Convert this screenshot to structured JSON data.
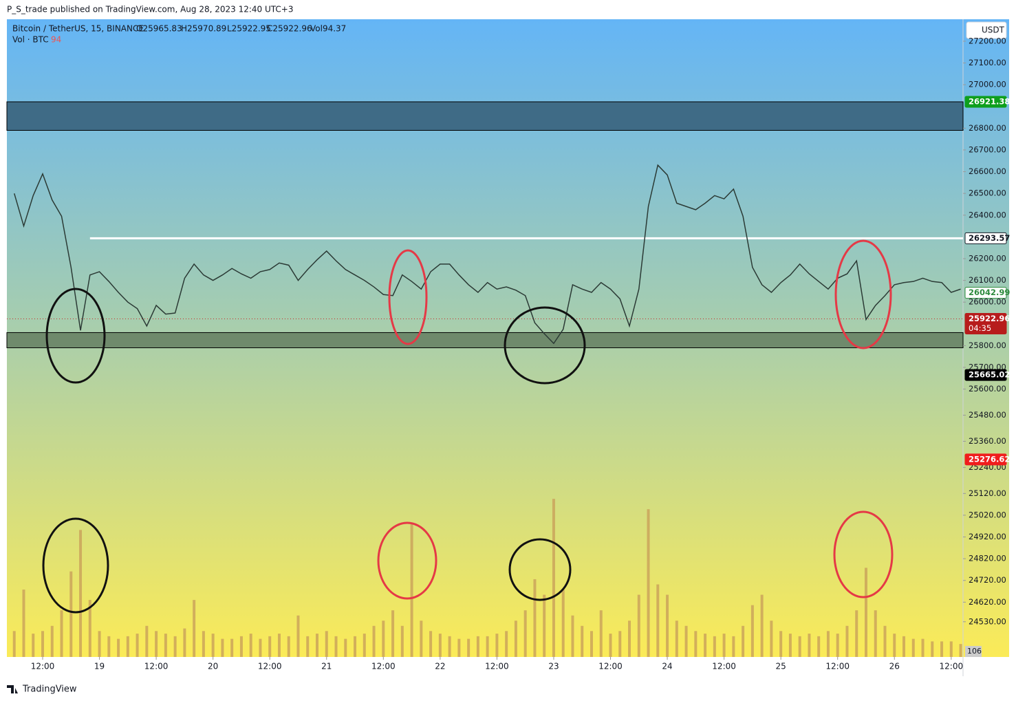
{
  "header": "P_S_trade published on TradingView.com, Aug 28, 2023 12:40 UTC+3",
  "footer": "TradingView",
  "currency_button": "USDT",
  "legend": {
    "symbol": "Bitcoin / TetherUS, 15, BINANCE",
    "ohlc": [
      "O25965.83",
      "H25970.89",
      "L25922.95",
      "C25922.96",
      "Vol94.37"
    ],
    "volume_name": "Vol · BTC",
    "volume_value": "94"
  },
  "chart_data": {
    "type": "line",
    "x": [
      6,
      8,
      10,
      12,
      14,
      16,
      18,
      20,
      22,
      24,
      26,
      28,
      30,
      32,
      34,
      36,
      38,
      40,
      42,
      44,
      46,
      48,
      50,
      52,
      54,
      56,
      58,
      60,
      62,
      64,
      66,
      68,
      70,
      72,
      74,
      76,
      78,
      80,
      82,
      84,
      86,
      88,
      90,
      92,
      94,
      96,
      98,
      100,
      102,
      104,
      106,
      108,
      110,
      112,
      114,
      116,
      118,
      120,
      122,
      124,
      126,
      128,
      130,
      132,
      134,
      136,
      138,
      140,
      142,
      144,
      146,
      148,
      150,
      152,
      154,
      156,
      158,
      160,
      162,
      164,
      166,
      168,
      170,
      172,
      174,
      176,
      178,
      180,
      182,
      184,
      186,
      188,
      190,
      192,
      194,
      196,
      198,
      200,
      202,
      204,
      206
    ],
    "xlim": [
      4.44,
      206.5
    ],
    "xticks": [
      {
        "value": 12,
        "label": "12:00"
      },
      {
        "value": 24,
        "label": "19"
      },
      {
        "value": 36,
        "label": "12:00"
      },
      {
        "value": 48,
        "label": "20"
      },
      {
        "value": 60,
        "label": "12:00"
      },
      {
        "value": 72,
        "label": "21"
      },
      {
        "value": 84,
        "label": "12:00"
      },
      {
        "value": 96,
        "label": "22"
      },
      {
        "value": 108,
        "label": "12:00"
      },
      {
        "value": 120,
        "label": "23"
      },
      {
        "value": 132,
        "label": "12:00"
      },
      {
        "value": 144,
        "label": "24"
      },
      {
        "value": 156,
        "label": "12:00"
      },
      {
        "value": 168,
        "label": "25"
      },
      {
        "value": 180,
        "label": "12:00"
      },
      {
        "value": 192,
        "label": "26"
      },
      {
        "value": 204,
        "label": "12:00"
      }
    ],
    "ylim": [
      24368,
      27301
    ],
    "yticks": [
      {
        "value": 27200,
        "label": "27200.00"
      },
      {
        "value": 27100,
        "label": "27100.00"
      },
      {
        "value": 27000,
        "label": "27000.00"
      },
      {
        "value": 26800,
        "label": "26800.00"
      },
      {
        "value": 26700,
        "label": "26700.00"
      },
      {
        "value": 26600,
        "label": "26600.00"
      },
      {
        "value": 26500,
        "label": "26500.00"
      },
      {
        "value": 26400,
        "label": "26400.00"
      },
      {
        "value": 26200,
        "label": "26200.00"
      },
      {
        "value": 26100,
        "label": "26100.00"
      },
      {
        "value": 26000,
        "label": "26000.00"
      },
      {
        "value": 25800,
        "label": "25800.00"
      },
      {
        "value": 25700,
        "label": "25700.00"
      },
      {
        "value": 25600,
        "label": "25600.00"
      },
      {
        "value": 25480,
        "label": "25480.00"
      },
      {
        "value": 25360,
        "label": "25360.00"
      },
      {
        "value": 25240,
        "label": "25240.00"
      },
      {
        "value": 25120,
        "label": "25120.00"
      },
      {
        "value": 25020,
        "label": "25020.00"
      },
      {
        "value": 24920,
        "label": "24920.00"
      },
      {
        "value": 24820,
        "label": "24820.00"
      },
      {
        "value": 24720,
        "label": "24720.00"
      },
      {
        "value": 24620,
        "label": "24620.00"
      },
      {
        "value": 24530,
        "label": "24530.00"
      }
    ],
    "y2lim": [
      0,
      12300
    ],
    "series": [
      {
        "name": "Bitcoin / TetherUS, 15, BINANCE",
        "color": "#2b3a35",
        "values": [
          26500,
          26350,
          26490,
          26590,
          26470,
          26395,
          26160,
          25870,
          26125,
          26140,
          26095,
          26045,
          26000,
          25970,
          25890,
          25985,
          25945,
          25950,
          26110,
          26175,
          26125,
          26100,
          26125,
          26155,
          26130,
          26110,
          26140,
          26150,
          26180,
          26170,
          26100,
          26150,
          26195,
          26235,
          26190,
          26150,
          26125,
          26100,
          26070,
          26035,
          26030,
          26125,
          26095,
          26060,
          26140,
          26175,
          26175,
          26125,
          26080,
          26045,
          26090,
          26060,
          26070,
          26055,
          26030,
          25905,
          25855,
          25810,
          25875,
          26080,
          26060,
          26045,
          26090,
          26060,
          26015,
          25890,
          26060,
          26440,
          26630,
          26585,
          26455,
          26440,
          26425,
          26455,
          26490,
          26475,
          26520,
          26395,
          26160,
          26080,
          26045,
          26090,
          26125,
          26175,
          26130,
          26095,
          26060,
          26110,
          26130,
          26190,
          25920,
          25985,
          26030,
          26080,
          26090,
          26095,
          26110,
          26095,
          26090,
          26045,
          26060
        ]
      },
      {
        "name": "Vol · BTC",
        "color": "#c9a05a",
        "type": "bar",
        "axis": "y2",
        "values": [
          500,
          1300,
          450,
          500,
          600,
          900,
          1650,
          2450,
          1100,
          500,
          400,
          350,
          400,
          450,
          600,
          500,
          450,
          400,
          550,
          1100,
          500,
          450,
          350,
          350,
          400,
          450,
          350,
          400,
          450,
          400,
          800,
          400,
          450,
          500,
          400,
          350,
          400,
          450,
          600,
          700,
          900,
          600,
          2580,
          700,
          500,
          450,
          400,
          350,
          350,
          400,
          400,
          450,
          500,
          700,
          900,
          1500,
          1200,
          3050,
          1300,
          800,
          600,
          500,
          900,
          450,
          500,
          700,
          1200,
          2850,
          1400,
          1200,
          700,
          600,
          500,
          450,
          400,
          450,
          400,
          600,
          1000,
          1200,
          700,
          500,
          450,
          400,
          450,
          400,
          500,
          450,
          600,
          900,
          1720,
          900,
          600,
          450,
          400,
          350,
          350,
          300,
          300,
          300,
          250
        ]
      }
    ],
    "zones": [
      {
        "from": 26790,
        "to": 26921.38,
        "color": "#3f6b86"
      },
      {
        "from": 25790,
        "to": 25860,
        "color": "#6f8a6c"
      }
    ],
    "hline": {
      "value": 26293.57,
      "color": "#ffffff",
      "x_from": 22
    },
    "last_price_line": {
      "value": 25922.96,
      "color": "#c62828"
    },
    "price_labels": [
      {
        "value": 26921.38,
        "color": "#0e9f1d",
        "text_color": "#ffffff"
      },
      {
        "value": 26293.57,
        "color": "#ffffff",
        "text_color": "#131722"
      },
      {
        "value": 26042.99,
        "color": "#ffffff",
        "text_color": "#2e8b3e"
      },
      {
        "value": 25922.96,
        "color": "#b71c1c",
        "text_color": "#ffffff",
        "countdown": "04:35"
      },
      {
        "value": 25665.02,
        "color": "#000000",
        "text_color": "#ffffff"
      },
      {
        "value": 25276.62,
        "color": "#f01d1d",
        "text_color": "#ffffff"
      }
    ],
    "volume_label": {
      "value": 106,
      "color": "#cccccc"
    }
  }
}
